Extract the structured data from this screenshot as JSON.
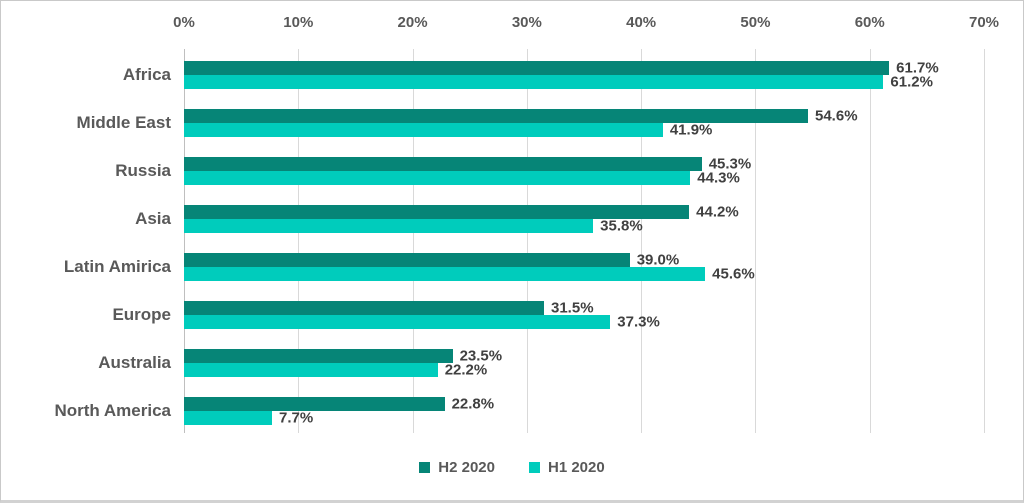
{
  "chart_data": {
    "type": "bar",
    "orientation": "horizontal",
    "title": "",
    "categories": [
      "Africa",
      "Middle East",
      "Russia",
      "Asia",
      "Latin Amirica",
      "Europe",
      "Australia",
      "North America"
    ],
    "series": [
      {
        "name": "H2 2020",
        "color": "#068577",
        "values": [
          61.7,
          54.6,
          45.3,
          44.2,
          39.0,
          31.5,
          23.5,
          22.8
        ]
      },
      {
        "name": "H1 2020",
        "color": "#00CCBC",
        "values": [
          61.2,
          41.9,
          44.3,
          35.8,
          45.6,
          37.3,
          22.2,
          7.7
        ]
      }
    ],
    "x_axis": {
      "position": "top",
      "min": 0,
      "max": 70,
      "tick_step": 10,
      "ticks": [
        "0%",
        "10%",
        "20%",
        "30%",
        "40%",
        "50%",
        "60%",
        "70%"
      ]
    },
    "grid": true,
    "data_labels": true,
    "value_suffix": "%",
    "legend_position": "bottom"
  },
  "legend": {
    "items": [
      {
        "label": "H2 2020",
        "color": "#068577"
      },
      {
        "label": "H1 2020",
        "color": "#00CCBC"
      }
    ]
  },
  "style_colors": {
    "gridline": "#d9d9d9",
    "axis_line": "#bfbfbf",
    "tick_text": "#595959",
    "category_text": "#595959",
    "data_label_text": "#404040",
    "background": "#ffffff"
  }
}
